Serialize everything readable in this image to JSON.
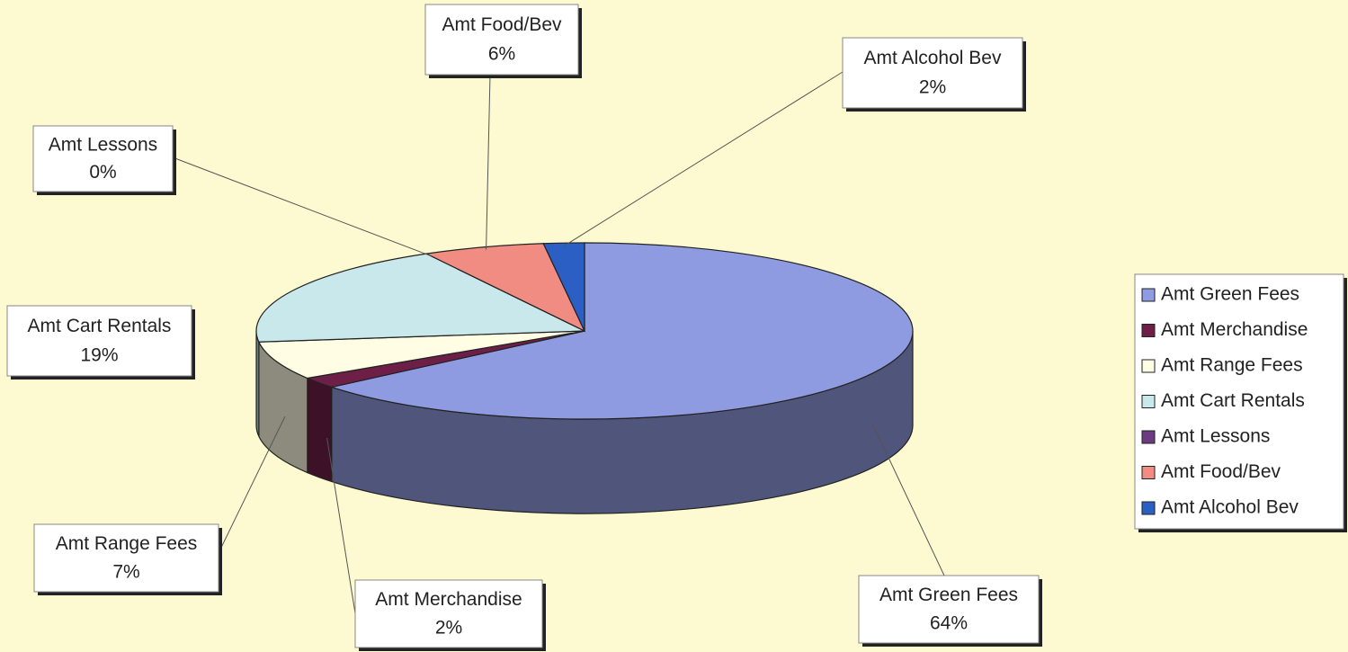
{
  "chart_data": {
    "type": "pie3d",
    "categories": [
      "Amt Green Fees",
      "Amt Merchandise",
      "Amt Range Fees",
      "Amt Cart Rentals",
      "Amt Lessons",
      "Amt Food/Bev",
      "Amt Alcohol Bev"
    ],
    "values": [
      64,
      2,
      7,
      19,
      0,
      6,
      2
    ],
    "value_labels": [
      "64%",
      "2%",
      "7%",
      "19%",
      "0%",
      "6%",
      "2%"
    ],
    "colors": [
      "#8f9be0",
      "#6e1f48",
      "#fffde3",
      "#c9e8ec",
      "#6b3a80",
      "#f08c82",
      "#2b5fc4"
    ],
    "legend": "right"
  }
}
